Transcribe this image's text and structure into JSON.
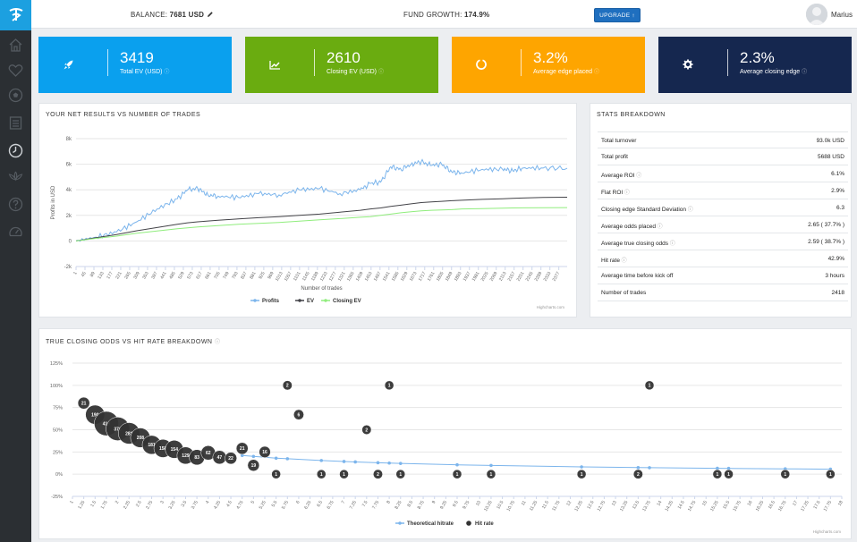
{
  "topbar": {
    "balance_label": "BALANCE:",
    "balance_value": "7681 USD",
    "growth_label": "FUND GROWTH:",
    "growth_value": "174.9%",
    "upgrade_label": "UPGRADE",
    "user_name": "Marius"
  },
  "sidebar": {
    "icons": [
      "home-icon",
      "heart-icon",
      "soccer-ball-icon",
      "list-icon",
      "clock-icon",
      "lotus-icon",
      "help-icon",
      "speedometer-icon"
    ]
  },
  "kpis": [
    {
      "value": "3419",
      "label": "Total EV (USD)",
      "icon": "rocket-icon",
      "color": "#0aa0ee"
    },
    {
      "value": "2610",
      "label": "Closing EV (USD)",
      "icon": "chart-line-icon",
      "color": "#6aac10"
    },
    {
      "value": "3.2%",
      "label": "Average edge placed",
      "icon": "circle-notch-icon",
      "color": "#fea500"
    },
    {
      "value": "2.3%",
      "label": "Average closing edge",
      "icon": "gear-icon",
      "color": "#15274f"
    }
  ],
  "net_results": {
    "title": "YOUR NET RESULTS VS NUMBER OF TRADES",
    "credits": "Highcharts.com"
  },
  "stats": {
    "title": "STATS BREAKDOWN",
    "rows": [
      {
        "label": "Total turnover",
        "value": "93.0k USD",
        "info": false
      },
      {
        "label": "Total profit",
        "value": "5688 USD",
        "info": false
      },
      {
        "label": "Average ROI",
        "value": "6.1%",
        "info": true
      },
      {
        "label": "Flat ROI",
        "value": "2.9%",
        "info": true
      },
      {
        "label": "Closing edge Standard Deviation",
        "value": "6.3",
        "info": true
      },
      {
        "label": "Average odds placed",
        "value": "2.65 ( 37.7% )",
        "info": true
      },
      {
        "label": "Average true closing odds",
        "value": "2.59 ( 38.7% )",
        "info": true
      },
      {
        "label": "Hit rate",
        "value": "42.9%",
        "info": true
      },
      {
        "label": "Average time before kick off",
        "value": "3 hours",
        "info": false
      },
      {
        "label": "Number of trades",
        "value": "2418",
        "info": false
      }
    ]
  },
  "hitrate_panel": {
    "title": "TRUE CLOSING ODDS VS HIT RATE BREAKDOWN",
    "credits": "Highcharts.com"
  },
  "chart_data": [
    {
      "type": "line",
      "ylabel": "Profits in USD",
      "xlabel": "Number of trades",
      "ylim": [
        -2000,
        8000
      ],
      "yticks": [
        -2000,
        0,
        2000,
        4000,
        6000,
        8000
      ],
      "ytick_labels": [
        "-2k",
        "0",
        "2k",
        "4k",
        "6k",
        "8k"
      ],
      "xticks": [
        "1",
        "45",
        "89",
        "133",
        "177",
        "221",
        "265",
        "309",
        "353",
        "397",
        "441",
        "485",
        "529",
        "573",
        "617",
        "661",
        "705",
        "749",
        "793",
        "837",
        "881",
        "925",
        "969",
        "1013",
        "1057",
        "1101",
        "1145",
        "1189",
        "1233",
        "1277",
        "1321",
        "1365",
        "1409",
        "1453",
        "1497",
        "1541",
        "1585",
        "1629",
        "1673",
        "1717",
        "1761",
        "1805",
        "1849",
        "1893",
        "1937",
        "1981",
        "2025",
        "2069",
        "2113",
        "2157",
        "2201",
        "2245",
        "2289",
        "2333",
        "2377"
      ],
      "x": [
        1,
        100,
        200,
        300,
        400,
        500,
        550,
        600,
        650,
        700,
        800,
        900,
        1000,
        1100,
        1200,
        1300,
        1400,
        1450,
        1500,
        1550,
        1600,
        1650,
        1700,
        1750,
        1800,
        1850,
        1900,
        2000,
        2100,
        2150,
        2200,
        2300,
        2418
      ],
      "legend_position": "bottom",
      "series": [
        {
          "name": "Profits",
          "color": "#7cb5ec",
          "values": [
            0,
            300,
            700,
            1500,
            2500,
            3300,
            4000,
            4100,
            3600,
            3500,
            3400,
            3700,
            3600,
            4000,
            4100,
            3700,
            4000,
            4500,
            4600,
            5800,
            5600,
            6000,
            6200,
            5900,
            6000,
            5400,
            5300,
            5600,
            5600,
            5500,
            5700,
            5700,
            5688
          ]
        },
        {
          "name": "EV",
          "color": "#434348",
          "values": [
            0,
            250,
            500,
            800,
            1050,
            1300,
            1420,
            1500,
            1560,
            1620,
            1720,
            1820,
            1900,
            2000,
            2100,
            2250,
            2400,
            2500,
            2580,
            2700,
            2800,
            2900,
            3000,
            3050,
            3100,
            3150,
            3180,
            3250,
            3300,
            3330,
            3360,
            3400,
            3419
          ]
        },
        {
          "name": "Closing EV",
          "color": "#90ed7d",
          "values": [
            0,
            200,
            380,
            600,
            780,
            950,
            1030,
            1100,
            1150,
            1200,
            1300,
            1380,
            1450,
            1550,
            1650,
            1750,
            1850,
            1900,
            2000,
            2100,
            2200,
            2280,
            2350,
            2400,
            2420,
            2450,
            2500,
            2530,
            2560,
            2580,
            2590,
            2600,
            2610
          ]
        }
      ]
    },
    {
      "type": "scatter",
      "ylim": [
        -25,
        125
      ],
      "yticks": [
        -25,
        0,
        25,
        50,
        75,
        100,
        125
      ],
      "ytick_labels": [
        "-25%",
        "0%",
        "25%",
        "50%",
        "75%",
        "100%",
        "125%"
      ],
      "xlim": [
        1,
        18
      ],
      "xtick_step": 0.25,
      "legend_position": "bottom",
      "series": [
        {
          "name": "Theoretical hitrate",
          "color": "#7cb5ec",
          "points": [
            [
              4.75,
              21
            ],
            [
              5,
              20
            ],
            [
              5.5,
              18
            ],
            [
              5.75,
              17.4
            ],
            [
              6.5,
              15.4
            ],
            [
              7,
              14.3
            ],
            [
              7.25,
              13.8
            ],
            [
              7.75,
              12.9
            ],
            [
              8,
              12.5
            ],
            [
              8.25,
              12.1
            ],
            [
              9.5,
              10.5
            ],
            [
              10.25,
              9.8
            ],
            [
              12.25,
              8.2
            ],
            [
              13.5,
              7.4
            ],
            [
              13.75,
              7.3
            ],
            [
              15.25,
              6.6
            ],
            [
              15.5,
              6.5
            ],
            [
              16.75,
              6
            ],
            [
              17.75,
              5.6
            ]
          ]
        },
        {
          "name": "Hit rate",
          "color": "#333333",
          "points": [
            {
              "x": 1.25,
              "y": 80,
              "n": "21"
            },
            {
              "x": 1.5,
              "y": 67,
              "n": "190"
            },
            {
              "x": 1.75,
              "y": 57,
              "n": "419"
            },
            {
              "x": 2,
              "y": 51,
              "n": "376"
            },
            {
              "x": 2.25,
              "y": 46,
              "n": "281"
            },
            {
              "x": 2.5,
              "y": 41,
              "n": "208"
            },
            {
              "x": 2.75,
              "y": 33,
              "n": "181"
            },
            {
              "x": 3,
              "y": 29,
              "n": "158"
            },
            {
              "x": 3.25,
              "y": 28,
              "n": "154"
            },
            {
              "x": 3.5,
              "y": 21,
              "n": "129"
            },
            {
              "x": 3.75,
              "y": 19,
              "n": "83"
            },
            {
              "x": 4,
              "y": 24,
              "n": "62"
            },
            {
              "x": 4.25,
              "y": 19,
              "n": "47"
            },
            {
              "x": 4.5,
              "y": 18,
              "n": "22"
            },
            {
              "x": 4.75,
              "y": 29,
              "n": "21"
            },
            {
              "x": 5,
              "y": 10,
              "n": "19"
            },
            {
              "x": 5.25,
              "y": 25,
              "n": "16"
            },
            {
              "x": 5.5,
              "y": 0,
              "n": "1"
            },
            {
              "x": 5.75,
              "y": 100,
              "n": "2"
            },
            {
              "x": 6,
              "y": 67,
              "n": "6"
            },
            {
              "x": 6.5,
              "y": 0,
              "n": "1"
            },
            {
              "x": 7,
              "y": 0,
              "n": "1"
            },
            {
              "x": 7.5,
              "y": 50,
              "n": "2"
            },
            {
              "x": 7.75,
              "y": 0,
              "n": "2"
            },
            {
              "x": 8,
              "y": 100,
              "n": "1"
            },
            {
              "x": 8.25,
              "y": 0,
              "n": "1"
            },
            {
              "x": 9.5,
              "y": 0,
              "n": "1"
            },
            {
              "x": 10.25,
              "y": 0,
              "n": "1"
            },
            {
              "x": 12.25,
              "y": 0,
              "n": "1"
            },
            {
              "x": 13.5,
              "y": 0,
              "n": "2"
            },
            {
              "x": 13.75,
              "y": 100,
              "n": "1"
            },
            {
              "x": 15.25,
              "y": 0,
              "n": "1"
            },
            {
              "x": 15.5,
              "y": 0,
              "n": "1"
            },
            {
              "x": 16.75,
              "y": 0,
              "n": "1"
            },
            {
              "x": 17.75,
              "y": 0,
              "n": "1"
            }
          ]
        }
      ]
    }
  ]
}
